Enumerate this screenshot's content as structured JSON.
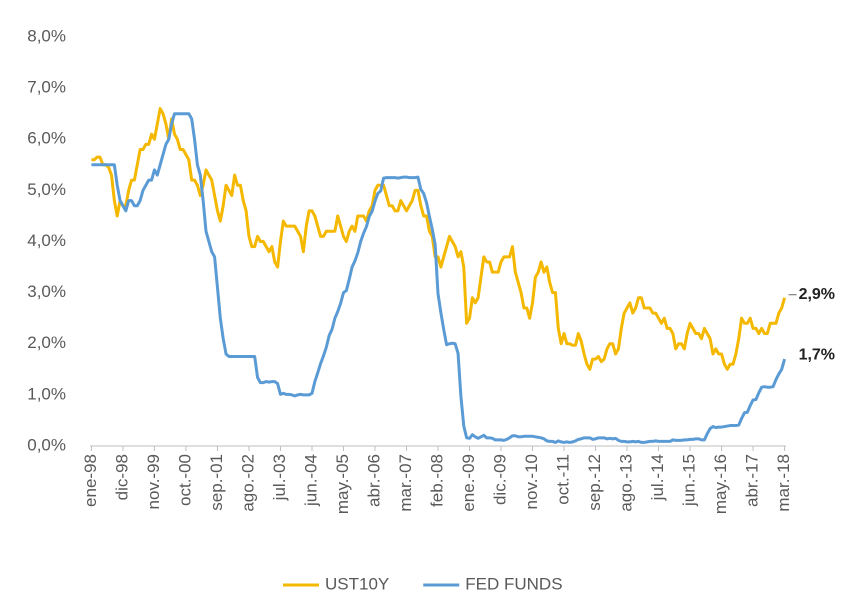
{
  "chart_data": {
    "type": "line",
    "categories": [
      "ene-98",
      null,
      null,
      null,
      null,
      null,
      null,
      null,
      null,
      null,
      null,
      "dic-98",
      null,
      null,
      null,
      null,
      null,
      null,
      null,
      null,
      null,
      null,
      "nov.-99",
      null,
      null,
      null,
      null,
      null,
      null,
      null,
      null,
      null,
      null,
      "oct.-00",
      null,
      null,
      null,
      null,
      null,
      null,
      null,
      null,
      null,
      null,
      "sep.-01",
      null,
      null,
      null,
      null,
      null,
      null,
      null,
      null,
      null,
      null,
      "ago.-02",
      null,
      null,
      null,
      null,
      null,
      null,
      null,
      null,
      null,
      null,
      "jul.-03",
      null,
      null,
      null,
      null,
      null,
      null,
      null,
      null,
      null,
      null,
      "jun.-04",
      null,
      null,
      null,
      null,
      null,
      null,
      null,
      null,
      null,
      null,
      "may.-05",
      null,
      null,
      null,
      null,
      null,
      null,
      null,
      null,
      null,
      null,
      "abr.-06",
      null,
      null,
      null,
      null,
      null,
      null,
      null,
      null,
      null,
      null,
      "mar.-07",
      null,
      null,
      null,
      null,
      null,
      null,
      null,
      null,
      null,
      null,
      "feb.-08",
      null,
      null,
      null,
      null,
      null,
      null,
      null,
      null,
      null,
      null,
      "ene.-09",
      null,
      null,
      null,
      null,
      null,
      null,
      null,
      null,
      null,
      null,
      "dic.-09",
      null,
      null,
      null,
      null,
      null,
      null,
      null,
      null,
      null,
      null,
      "nov.-10",
      null,
      null,
      null,
      null,
      null,
      null,
      null,
      null,
      null,
      null,
      "oct.-11",
      null,
      null,
      null,
      null,
      null,
      null,
      null,
      null,
      null,
      null,
      "sep.-12",
      null,
      null,
      null,
      null,
      null,
      null,
      null,
      null,
      null,
      null,
      "ago.-13",
      null,
      null,
      null,
      null,
      null,
      null,
      null,
      null,
      null,
      null,
      "jul.-14",
      null,
      null,
      null,
      null,
      null,
      null,
      null,
      null,
      null,
      null,
      "jun.-15",
      null,
      null,
      null,
      null,
      null,
      null,
      null,
      null,
      null,
      null,
      "may.-16",
      null,
      null,
      null,
      null,
      null,
      null,
      null,
      null,
      null,
      null,
      "abr.-17",
      null,
      null,
      null,
      null,
      null,
      null,
      null,
      null,
      null,
      null,
      "mar.-18"
    ],
    "series": [
      {
        "name": "UST10Y",
        "color": "#f5b800",
        "values": [
          5.6,
          5.6,
          5.65,
          5.65,
          5.5,
          5.5,
          5.45,
          5.3,
          4.8,
          4.5,
          4.8,
          4.7,
          4.7,
          5.0,
          5.2,
          5.2,
          5.5,
          5.8,
          5.8,
          5.9,
          5.9,
          6.1,
          6.0,
          6.3,
          6.6,
          6.5,
          6.3,
          6.0,
          6.4,
          6.1,
          6.0,
          5.8,
          5.8,
          5.7,
          5.6,
          5.2,
          5.2,
          5.1,
          4.9,
          5.1,
          5.4,
          5.3,
          5.2,
          4.9,
          4.6,
          4.4,
          4.7,
          5.1,
          5.0,
          4.9,
          5.3,
          5.1,
          5.1,
          4.8,
          4.6,
          4.1,
          3.9,
          3.9,
          4.1,
          4.0,
          4.0,
          3.9,
          3.8,
          3.9,
          3.6,
          3.5,
          4.0,
          4.4,
          4.3,
          4.3,
          4.3,
          4.3,
          4.2,
          4.1,
          3.8,
          4.3,
          4.6,
          4.6,
          4.5,
          4.3,
          4.1,
          4.1,
          4.2,
          4.2,
          4.2,
          4.2,
          4.5,
          4.3,
          4.1,
          4.0,
          4.2,
          4.3,
          4.2,
          4.5,
          4.5,
          4.5,
          4.4,
          4.6,
          4.7,
          5.0,
          5.1,
          5.1,
          5.1,
          4.9,
          4.7,
          4.7,
          4.6,
          4.6,
          4.8,
          4.7,
          4.6,
          4.7,
          4.8,
          5.0,
          5.0,
          4.7,
          4.5,
          4.5,
          4.2,
          4.1,
          3.7,
          3.7,
          3.5,
          3.7,
          3.9,
          4.1,
          4.0,
          3.9,
          3.7,
          3.8,
          3.5,
          2.4,
          2.5,
          2.9,
          2.8,
          2.9,
          3.3,
          3.7,
          3.6,
          3.6,
          3.4,
          3.4,
          3.4,
          3.6,
          3.7,
          3.7,
          3.7,
          3.9,
          3.4,
          3.2,
          3.0,
          2.7,
          2.7,
          2.5,
          2.8,
          3.3,
          3.4,
          3.6,
          3.4,
          3.5,
          3.2,
          3.0,
          3.0,
          2.3,
          2.0,
          2.2,
          2.0,
          2.0,
          1.97,
          1.97,
          2.2,
          2.05,
          1.8,
          1.6,
          1.5,
          1.7,
          1.7,
          1.75,
          1.65,
          1.7,
          1.9,
          2.0,
          2.0,
          1.8,
          1.9,
          2.3,
          2.6,
          2.7,
          2.8,
          2.6,
          2.7,
          2.9,
          2.9,
          2.7,
          2.7,
          2.7,
          2.6,
          2.6,
          2.5,
          2.4,
          2.5,
          2.3,
          2.3,
          2.2,
          1.9,
          2.0,
          2.0,
          1.9,
          2.2,
          2.4,
          2.3,
          2.2,
          2.2,
          2.1,
          2.3,
          2.2,
          2.1,
          1.8,
          1.9,
          1.8,
          1.8,
          1.6,
          1.5,
          1.6,
          1.6,
          1.8,
          2.1,
          2.5,
          2.4,
          2.4,
          2.5,
          2.3,
          2.3,
          2.2,
          2.3,
          2.2,
          2.2,
          2.4,
          2.4,
          2.4,
          2.6,
          2.7,
          2.9
        ],
        "value_labels": [
          null,
          null,
          null,
          null,
          null,
          null,
          null,
          null,
          null,
          null,
          null,
          null,
          null,
          null,
          null,
          null,
          null,
          null,
          null,
          null,
          null,
          null,
          null,
          null,
          null,
          null,
          null,
          null,
          null,
          null,
          null,
          null,
          null,
          null,
          null,
          null,
          null,
          null,
          null,
          null,
          null,
          null,
          null,
          null,
          null,
          null,
          null,
          null,
          null,
          null,
          null,
          null,
          null,
          null,
          null,
          null,
          null,
          null,
          null,
          null,
          null,
          null,
          null,
          null,
          null,
          null,
          null,
          null,
          null,
          null,
          null,
          null,
          null,
          null,
          null,
          null,
          null,
          null,
          null,
          null,
          null,
          null,
          null,
          null,
          null,
          null,
          null,
          null,
          null,
          null,
          null,
          null,
          null,
          null,
          null,
          null,
          null,
          null,
          null,
          null,
          null,
          null,
          null,
          null,
          null,
          null,
          null,
          null,
          null,
          null,
          null,
          null,
          null,
          null,
          null,
          null,
          null,
          null,
          null,
          null,
          null,
          null,
          null,
          null,
          null,
          null,
          null,
          null,
          null,
          null,
          null,
          null,
          null,
          null,
          null,
          null,
          null,
          null,
          null,
          null,
          null,
          null,
          null,
          null,
          null,
          null,
          null,
          null,
          null,
          null,
          null,
          null,
          null,
          null,
          null,
          null,
          null,
          null,
          null,
          null,
          null,
          null,
          null,
          null,
          null,
          null,
          null,
          null,
          null,
          null,
          null,
          null,
          null,
          null,
          null,
          null,
          null,
          null,
          null,
          null,
          null,
          null,
          null,
          null,
          null,
          null,
          null,
          null,
          null,
          null,
          null,
          null,
          null,
          null,
          null,
          null,
          null,
          null,
          null,
          null,
          null,
          null,
          null,
          null,
          null,
          null,
          null,
          null,
          null,
          null,
          null,
          null,
          null,
          null,
          null,
          null,
          null,
          null,
          null,
          null,
          null,
          null,
          null,
          null,
          null,
          null,
          null,
          null,
          null,
          null,
          null,
          null,
          null,
          null,
          null,
          null,
          null,
          null,
          null,
          null,
          null,
          null,
          "2,9%"
        ]
      },
      {
        "name": "FED FUNDS",
        "color": "#5b9bd5",
        "values": [
          5.5,
          5.5,
          5.5,
          5.5,
          5.5,
          5.5,
          5.5,
          5.5,
          5.5,
          5.1,
          4.8,
          4.7,
          4.6,
          4.8,
          4.8,
          4.7,
          4.7,
          4.8,
          5.0,
          5.1,
          5.2,
          5.2,
          5.4,
          5.3,
          5.5,
          5.7,
          5.9,
          6.0,
          6.3,
          6.5,
          6.5,
          6.5,
          6.5,
          6.5,
          6.5,
          6.4,
          6.0,
          5.5,
          5.3,
          4.8,
          4.2,
          4.0,
          3.8,
          3.7,
          3.1,
          2.5,
          2.1,
          1.8,
          1.75,
          1.75,
          1.75,
          1.75,
          1.75,
          1.75,
          1.75,
          1.75,
          1.75,
          1.75,
          1.34,
          1.24,
          1.24,
          1.26,
          1.25,
          1.26,
          1.26,
          1.22,
          1.01,
          1.03,
          1.01,
          1.01,
          1.0,
          0.98,
          1.0,
          1.01,
          1.0,
          1.0,
          1.0,
          1.03,
          1.26,
          1.43,
          1.61,
          1.76,
          1.93,
          2.16,
          2.28,
          2.5,
          2.63,
          2.79,
          3.0,
          3.04,
          3.26,
          3.5,
          3.62,
          3.78,
          4.0,
          4.16,
          4.29,
          4.49,
          4.59,
          4.79,
          4.94,
          4.99,
          5.24,
          5.25,
          5.25,
          5.25,
          5.25,
          5.24,
          5.25,
          5.26,
          5.26,
          5.25,
          5.25,
          5.25,
          5.26,
          5.02,
          4.94,
          4.76,
          4.49,
          4.24,
          3.94,
          2.98,
          2.61,
          2.28,
          1.98,
          2.0,
          2.01,
          2.0,
          1.81,
          0.97,
          0.39,
          0.16,
          0.15,
          0.22,
          0.18,
          0.15,
          0.18,
          0.21,
          0.16,
          0.16,
          0.15,
          0.12,
          0.12,
          0.12,
          0.11,
          0.13,
          0.16,
          0.2,
          0.2,
          0.18,
          0.18,
          0.19,
          0.19,
          0.19,
          0.19,
          0.18,
          0.17,
          0.16,
          0.14,
          0.1,
          0.09,
          0.09,
          0.07,
          0.1,
          0.08,
          0.07,
          0.08,
          0.07,
          0.08,
          0.1,
          0.13,
          0.14,
          0.16,
          0.16,
          0.16,
          0.13,
          0.14,
          0.16,
          0.16,
          0.16,
          0.14,
          0.15,
          0.14,
          0.15,
          0.11,
          0.09,
          0.09,
          0.08,
          0.08,
          0.09,
          0.08,
          0.09,
          0.07,
          0.07,
          0.08,
          0.09,
          0.09,
          0.1,
          0.09,
          0.09,
          0.09,
          0.09,
          0.09,
          0.12,
          0.11,
          0.11,
          0.11,
          0.12,
          0.12,
          0.13,
          0.13,
          0.14,
          0.14,
          0.12,
          0.12,
          0.24,
          0.34,
          0.38,
          0.36,
          0.37,
          0.37,
          0.38,
          0.39,
          0.4,
          0.4,
          0.4,
          0.41,
          0.54,
          0.65,
          0.66,
          0.79,
          0.9,
          0.91,
          1.04,
          1.15,
          1.16,
          1.15,
          1.15,
          1.16,
          1.3,
          1.41,
          1.5,
          1.7
        ],
        "value_labels": [
          null,
          null,
          null,
          null,
          null,
          null,
          null,
          null,
          null,
          null,
          null,
          null,
          null,
          null,
          null,
          null,
          null,
          null,
          null,
          null,
          null,
          null,
          null,
          null,
          null,
          null,
          null,
          null,
          null,
          null,
          null,
          null,
          null,
          null,
          null,
          null,
          null,
          null,
          null,
          null,
          null,
          null,
          null,
          null,
          null,
          null,
          null,
          null,
          null,
          null,
          null,
          null,
          null,
          null,
          null,
          null,
          null,
          null,
          null,
          null,
          null,
          null,
          null,
          null,
          null,
          null,
          null,
          null,
          null,
          null,
          null,
          null,
          null,
          null,
          null,
          null,
          null,
          null,
          null,
          null,
          null,
          null,
          null,
          null,
          null,
          null,
          null,
          null,
          null,
          null,
          null,
          null,
          null,
          null,
          null,
          null,
          null,
          null,
          null,
          null,
          null,
          null,
          null,
          null,
          null,
          null,
          null,
          null,
          null,
          null,
          null,
          null,
          null,
          null,
          null,
          null,
          null,
          null,
          null,
          null,
          null,
          null,
          null,
          null,
          null,
          null,
          null,
          null,
          null,
          null,
          null,
          null,
          null,
          null,
          null,
          null,
          null,
          null,
          null,
          null,
          null,
          null,
          null,
          null,
          null,
          null,
          null,
          null,
          null,
          null,
          null,
          null,
          null,
          null,
          null,
          null,
          null,
          null,
          null,
          null,
          null,
          null,
          null,
          null,
          null,
          null,
          null,
          null,
          null,
          null,
          null,
          null,
          null,
          null,
          null,
          null,
          null,
          null,
          null,
          null,
          null,
          null,
          null,
          null,
          null,
          null,
          null,
          null,
          null,
          null,
          null,
          null,
          null,
          null,
          null,
          null,
          null,
          null,
          null,
          null,
          null,
          null,
          null,
          null,
          null,
          null,
          null,
          null,
          null,
          null,
          null,
          null,
          null,
          null,
          null,
          null,
          null,
          null,
          null,
          null,
          null,
          null,
          null,
          null,
          null,
          null,
          null,
          null,
          null,
          null,
          null,
          null,
          null,
          null,
          null,
          null,
          null,
          null,
          null,
          null,
          null,
          null,
          "1,7%"
        ]
      }
    ],
    "ylim": [
      0,
      8
    ],
    "yticks": [
      {
        "value": 0,
        "label": "0,0%"
      },
      {
        "value": 1,
        "label": "1,0%"
      },
      {
        "value": 2,
        "label": "2,0%"
      },
      {
        "value": 3,
        "label": "3,0%"
      },
      {
        "value": 4,
        "label": "4,0%"
      },
      {
        "value": 5,
        "label": "5,0%"
      },
      {
        "value": 6,
        "label": "6,0%"
      },
      {
        "value": 7,
        "label": "7,0%"
      },
      {
        "value": 8,
        "label": "8,0%"
      }
    ],
    "grid": false,
    "legend": "bottom"
  }
}
